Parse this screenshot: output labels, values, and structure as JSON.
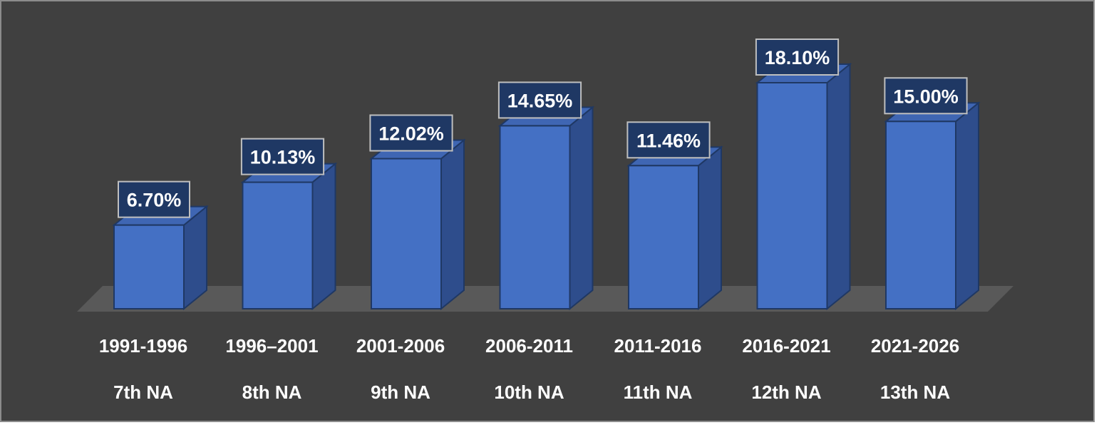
{
  "chart_data": {
    "type": "bar",
    "variant": "3d-column",
    "categories": [
      "1991-1996",
      "1996–2001",
      "2001-2006",
      "2006-2011",
      "2011-2016",
      "2016-2021",
      "2021-2026"
    ],
    "sub_categories": [
      "7th NA",
      "8th NA",
      "9th NA",
      "10th NA",
      "11th NA",
      "12th NA",
      "13th NA"
    ],
    "series": [
      {
        "values": [
          6.7,
          10.13,
          12.02,
          14.65,
          11.46,
          18.1,
          15.0
        ],
        "data_labels": [
          "6.70%",
          "10.13%",
          "12.02%",
          "14.65%",
          "11.46%",
          "18.10%",
          "15.00%"
        ]
      }
    ],
    "unit": "%",
    "ylim": [
      0,
      18.1
    ],
    "grid": false,
    "legend": "none",
    "title": "",
    "xlabel": "",
    "ylabel": ""
  },
  "colors": {
    "background": "#404040",
    "border": "#8c8c8c",
    "floor": "#595959",
    "bar_front": "#4470C4",
    "bar_side": "#2E4D8C",
    "bar_top": "#3F66B3",
    "bar_edge": "#1F3864",
    "text": "#ffffff",
    "label_box_fill": "#1F3864",
    "label_box_border": "#BFBFBF"
  }
}
